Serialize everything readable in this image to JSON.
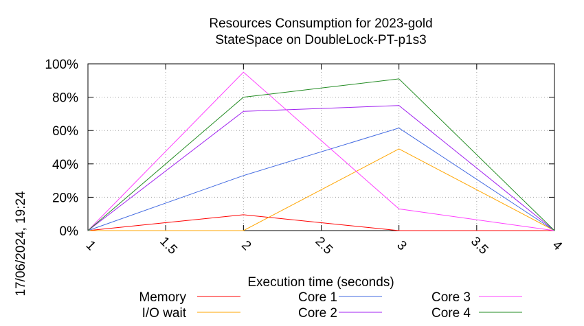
{
  "chart_data": {
    "type": "line",
    "title_lines": [
      "Resources Consumption for 2023-gold",
      "StateSpace on DoubleLock-PT-p1s3"
    ],
    "xlabel": "Execution time (seconds)",
    "ylabel": "",
    "xlim": [
      1,
      4
    ],
    "ylim": [
      0,
      100
    ],
    "x_ticks": [
      "1",
      "1.5",
      "2",
      "2.5",
      "3",
      "3.5",
      "4"
    ],
    "y_ticks": [
      "0%",
      "20%",
      "40%",
      "60%",
      "80%",
      "100%"
    ],
    "grid": true,
    "legend_position": "bottom",
    "side_text": "17/06/2024, 19:24",
    "series": [
      {
        "name": "Memory",
        "color": "#ff0000",
        "x": [
          1,
          2,
          3,
          4
        ],
        "y": [
          0,
          9.5,
          0,
          0
        ]
      },
      {
        "name": "I/O wait",
        "color": "#ffa500",
        "x": [
          1,
          2,
          3,
          4
        ],
        "y": [
          0,
          0,
          49,
          0
        ]
      },
      {
        "name": "Core 1",
        "color": "#4169e1",
        "x": [
          1,
          2,
          3,
          4
        ],
        "y": [
          0,
          33,
          61.5,
          0
        ]
      },
      {
        "name": "Core 2",
        "color": "#a020f0",
        "x": [
          1,
          2,
          3,
          4
        ],
        "y": [
          0,
          71.5,
          75,
          0
        ]
      },
      {
        "name": "Core 3",
        "color": "#ff40ff",
        "x": [
          1,
          2,
          3,
          4
        ],
        "y": [
          0,
          95,
          13,
          0
        ]
      },
      {
        "name": "Core 4",
        "color": "#228b22",
        "x": [
          1,
          2,
          3,
          4
        ],
        "y": [
          0,
          80,
          91,
          0
        ]
      }
    ]
  }
}
